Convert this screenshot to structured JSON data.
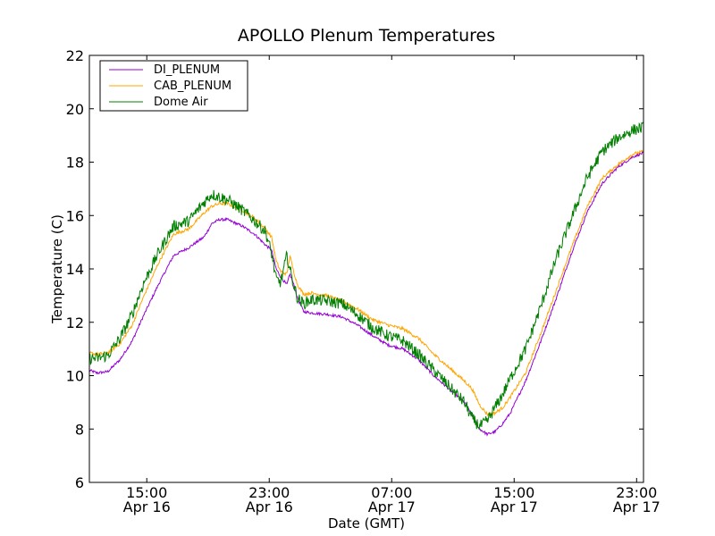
{
  "chart_data": {
    "type": "line",
    "title": "APOLLO Plenum Temperatures",
    "xlabel": "Date (GMT)",
    "ylabel": "Temperature (C)",
    "x_unit": "hours since Apr 16 11:15 GMT",
    "xlim": [
      0,
      36.2
    ],
    "ylim": [
      6,
      22
    ],
    "yticks": [
      6,
      8,
      10,
      12,
      14,
      16,
      18,
      20,
      22
    ],
    "xticks": [
      {
        "x": 3.75,
        "time": "15:00",
        "date": "Apr 16"
      },
      {
        "x": 11.75,
        "time": "23:00",
        "date": "Apr 16"
      },
      {
        "x": 19.75,
        "time": "07:00",
        "date": "Apr 17"
      },
      {
        "x": 27.75,
        "time": "15:00",
        "date": "Apr 17"
      },
      {
        "x": 35.75,
        "time": "23:00",
        "date": "Apr 17"
      }
    ],
    "grid": false,
    "legend_position": "top-left",
    "series": [
      {
        "name": "DI_PLENUM",
        "color": "#9400d3",
        "noise": 0.05,
        "x": [
          0,
          0.5,
          1.2,
          2,
          2.8,
          3.5,
          4.5,
          5.5,
          6.5,
          7.5,
          8,
          8.5,
          9,
          10,
          10.8,
          11.5,
          11.9,
          12.2,
          12.5,
          12.9,
          13.1,
          13.3,
          13.6,
          14,
          14.5,
          15.5,
          16.5,
          17.5,
          18.5,
          19.5,
          20.5,
          21.5,
          22.5,
          23.5,
          24.5,
          25,
          25.5,
          26,
          26.5,
          27,
          27.5,
          28.5,
          29.5,
          30.5,
          31.5,
          32.5,
          33.5,
          34.5,
          35.5,
          36.2
        ],
        "values": [
          10.2,
          10.1,
          10.15,
          10.6,
          11.3,
          12.2,
          13.4,
          14.5,
          14.8,
          15.2,
          15.7,
          15.85,
          15.85,
          15.6,
          15.3,
          14.9,
          14.7,
          14.0,
          13.7,
          13.4,
          13.8,
          13.5,
          12.9,
          12.4,
          12.35,
          12.3,
          12.2,
          11.9,
          11.5,
          11.15,
          11.0,
          10.6,
          10.0,
          9.5,
          9.0,
          8.5,
          8.0,
          7.8,
          7.9,
          8.2,
          8.6,
          9.8,
          11.3,
          12.9,
          14.6,
          16.1,
          17.2,
          17.8,
          18.2,
          18.35
        ]
      },
      {
        "name": "CAB_PLENUM",
        "color": "#ffa500",
        "noise": 0.06,
        "x": [
          0,
          0.5,
          1.2,
          2,
          2.8,
          3.5,
          4.5,
          5.5,
          6.5,
          7.5,
          8,
          8.5,
          9,
          10,
          10.8,
          11.5,
          11.9,
          12.2,
          12.5,
          12.9,
          13.1,
          13.3,
          13.6,
          14,
          14.5,
          15.5,
          16.5,
          17.5,
          18.5,
          19.5,
          20.5,
          21.5,
          22.5,
          23.5,
          24.5,
          25,
          25.5,
          26,
          26.5,
          27,
          27.5,
          28.5,
          29.5,
          30.5,
          31.5,
          32.5,
          33.5,
          34.5,
          35.5,
          36.2
        ],
        "values": [
          10.85,
          10.8,
          10.85,
          11.2,
          11.9,
          12.9,
          14.2,
          15.3,
          15.5,
          16.1,
          16.35,
          16.45,
          16.45,
          16.2,
          15.9,
          15.5,
          15.2,
          14.3,
          13.9,
          13.8,
          14.5,
          14.0,
          13.4,
          13.05,
          13.1,
          13.0,
          12.8,
          12.5,
          12.1,
          11.9,
          11.75,
          11.4,
          10.8,
          10.3,
          9.8,
          9.5,
          8.9,
          8.55,
          8.6,
          8.8,
          9.2,
          10.1,
          11.6,
          13.2,
          14.8,
          16.3,
          17.4,
          17.9,
          18.3,
          18.4
        ]
      },
      {
        "name": "Dome Air",
        "color": "#007f00",
        "noise": 0.22,
        "x": [
          0,
          0.5,
          1.2,
          2,
          2.8,
          3.5,
          4.5,
          5.5,
          6.5,
          7.5,
          8,
          8.5,
          9,
          10,
          10.8,
          11.5,
          11.9,
          12.2,
          12.5,
          12.9,
          13.1,
          13.3,
          13.6,
          14,
          14.5,
          15.5,
          16.5,
          17.5,
          18.5,
          19.5,
          20.5,
          21.5,
          22.5,
          23.5,
          24.5,
          25,
          25.5,
          26,
          26.5,
          27,
          27.5,
          28.5,
          29.5,
          30.5,
          31.5,
          32.5,
          33.5,
          34.5,
          35.5,
          36.2
        ],
        "values": [
          10.65,
          10.65,
          10.75,
          11.4,
          12.3,
          13.4,
          14.6,
          15.6,
          15.8,
          16.5,
          16.8,
          16.7,
          16.6,
          16.2,
          15.8,
          15.4,
          14.6,
          13.6,
          13.5,
          14.5,
          14.0,
          13.5,
          12.9,
          12.7,
          12.85,
          12.8,
          12.7,
          12.3,
          11.8,
          11.5,
          11.3,
          10.8,
          10.2,
          9.6,
          9.0,
          8.4,
          8.1,
          8.3,
          8.8,
          9.3,
          9.9,
          11.0,
          12.6,
          14.4,
          15.9,
          17.4,
          18.4,
          18.9,
          19.2,
          19.3
        ]
      }
    ]
  }
}
